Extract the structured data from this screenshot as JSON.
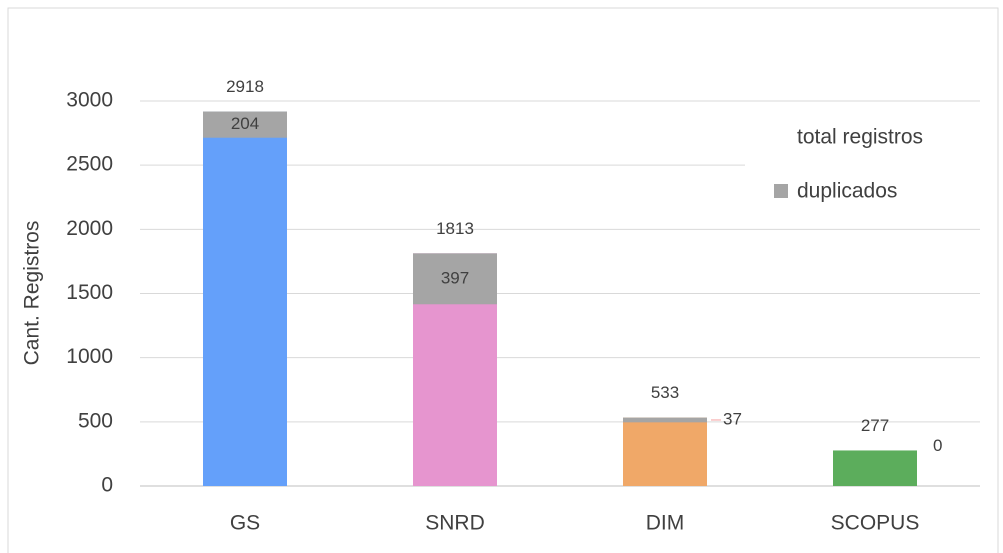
{
  "chart_data": {
    "type": "bar",
    "y_label": "Cant. Registros",
    "categories": [
      "GS",
      "SNRD",
      "DIM",
      "SCOPUS"
    ],
    "series": [
      {
        "name": "total registros",
        "colors": [
          "#64a0fa",
          "#e695cf",
          "#f0a868",
          "#5cad5c"
        ],
        "values": [
          2918,
          1813,
          533,
          277
        ]
      },
      {
        "name": "duplicados",
        "color": "#a5a5a5",
        "values": [
          204,
          397,
          37,
          0
        ]
      }
    ],
    "ylim": [
      0,
      3000
    ],
    "yticks": [
      0,
      500,
      1000,
      1500,
      2000,
      2500,
      3000
    ],
    "grid": true
  }
}
